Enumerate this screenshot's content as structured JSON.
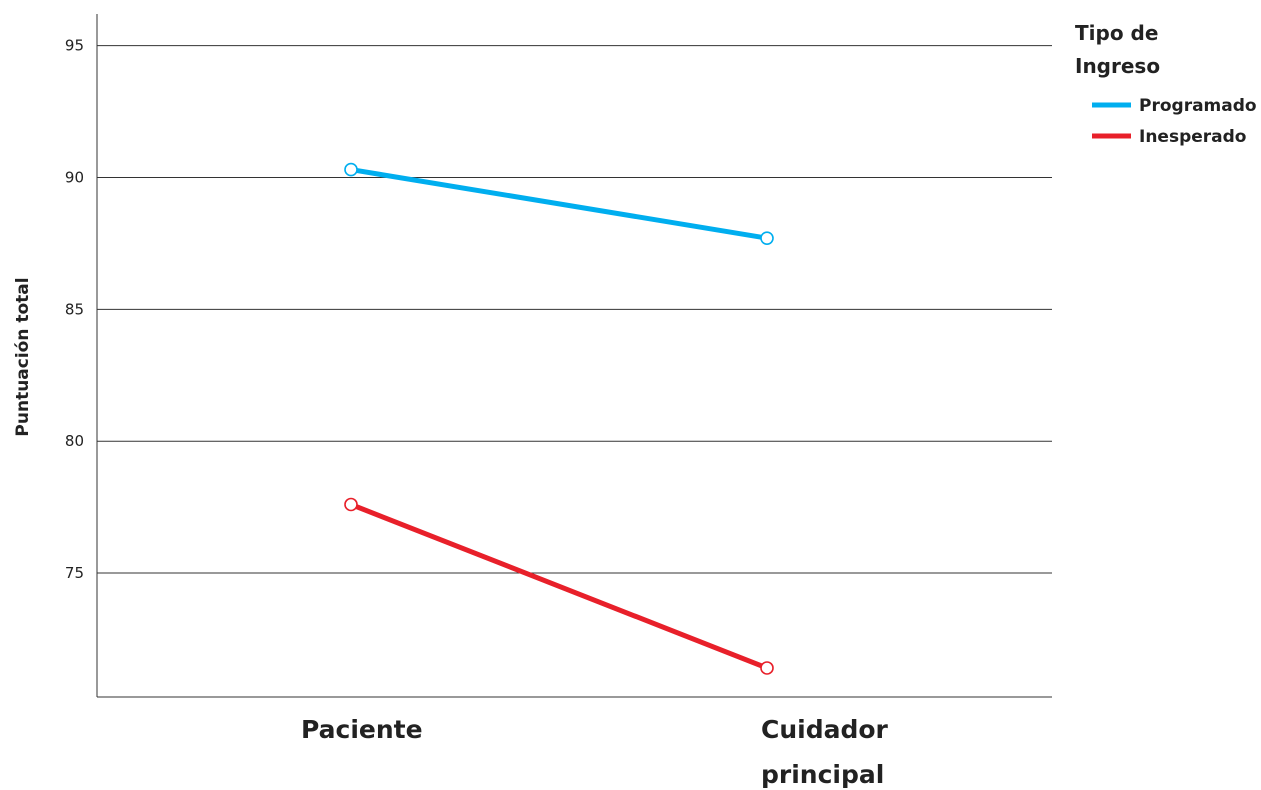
{
  "chart_data": {
    "type": "line",
    "categories": [
      "Paciente",
      "Cuidador principal"
    ],
    "series": [
      {
        "name": "Programado",
        "values": [
          90.3,
          87.7
        ],
        "color": "#00aeef"
      },
      {
        "name": "Inesperado",
        "values": [
          77.6,
          71.4
        ],
        "color": "#e8202a"
      }
    ],
    "ylabel": "Puntuación total",
    "xlabel": "",
    "ylim": [
      70.3,
      96.2
    ],
    "yticks": [
      75,
      80,
      85,
      90,
      95
    ],
    "grid": true,
    "legend": {
      "title": "Tipo de Ingreso",
      "position": "top-right"
    }
  }
}
